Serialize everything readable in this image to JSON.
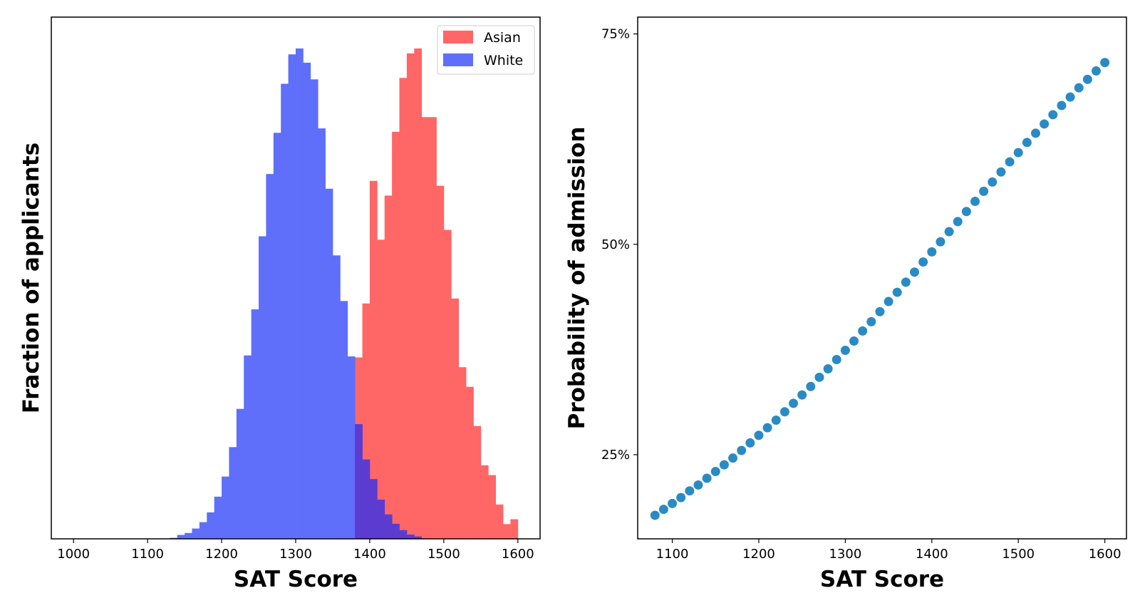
{
  "chart_data": [
    {
      "type": "bar",
      "subtype": "histogram",
      "xlabel": "SAT Score",
      "ylabel": "Fraction of applicants",
      "xlim": [
        970,
        1630
      ],
      "ylim": [
        0,
        1
      ],
      "y_ticks_shown": false,
      "xticks": [
        1000,
        1100,
        1200,
        1300,
        1400,
        1500,
        1600
      ],
      "grid": false,
      "legend": {
        "position": "top-right",
        "entries": [
          "Asian",
          "White"
        ]
      },
      "bin_width": 10,
      "overlap_color": "#5c3cd0",
      "series": [
        {
          "name": "Asian",
          "color": "#ff6666",
          "bin_starts": [
            1380,
            1390,
            1400,
            1410,
            1420,
            1430,
            1440,
            1450,
            1460,
            1470,
            1480,
            1490,
            1500,
            1510,
            1520,
            1530,
            1540,
            1550,
            1560,
            1570,
            1580,
            1590
          ],
          "values": [
            0.37,
            0.48,
            0.73,
            0.61,
            0.7,
            0.83,
            0.94,
            0.99,
            1.0,
            0.86,
            0.86,
            0.72,
            0.63,
            0.49,
            0.35,
            0.31,
            0.23,
            0.15,
            0.13,
            0.07,
            0.03,
            0.04
          ]
        },
        {
          "name": "White",
          "color": "#5f6ffa",
          "bin_starts": [
            1130,
            1140,
            1150,
            1160,
            1170,
            1180,
            1190,
            1200,
            1210,
            1220,
            1230,
            1240,
            1250,
            1260,
            1270,
            1280,
            1290,
            1300,
            1310,
            1320,
            1330,
            1340,
            1350,
            1360,
            1370,
            1380,
            1390,
            1400,
            1410,
            1420,
            1430,
            1440,
            1450,
            1460
          ],
          "values": [
            0.002,
            0.008,
            0.012,
            0.021,
            0.034,
            0.054,
            0.086,
            0.127,
            0.187,
            0.265,
            0.374,
            0.468,
            0.617,
            0.744,
            0.828,
            0.928,
            0.988,
            1.0,
            0.971,
            0.937,
            0.837,
            0.714,
            0.578,
            0.485,
            0.372,
            0.234,
            0.162,
            0.122,
            0.08,
            0.05,
            0.031,
            0.018,
            0.009,
            0.005
          ]
        }
      ]
    },
    {
      "type": "scatter",
      "xlabel": "SAT Score",
      "ylabel": "Probability of admission",
      "xlim": [
        1060,
        1625
      ],
      "ylim": [
        0.15,
        0.77
      ],
      "xticks": [
        1100,
        1200,
        1300,
        1400,
        1500,
        1600
      ],
      "yticks": [
        0.25,
        0.5,
        0.75
      ],
      "ytick_labels": [
        "25%",
        "50%",
        "75%"
      ],
      "grid": false,
      "color": "#2a8bc4",
      "x": [
        1080,
        1090,
        1100,
        1110,
        1120,
        1130,
        1140,
        1150,
        1160,
        1170,
        1180,
        1190,
        1200,
        1210,
        1220,
        1230,
        1240,
        1250,
        1260,
        1270,
        1280,
        1290,
        1300,
        1310,
        1320,
        1330,
        1340,
        1350,
        1360,
        1370,
        1380,
        1390,
        1400,
        1410,
        1420,
        1430,
        1440,
        1450,
        1460,
        1470,
        1480,
        1490,
        1500,
        1510,
        1520,
        1530,
        1540,
        1550,
        1560,
        1570,
        1580,
        1590,
        1600
      ],
      "y": [
        0.178,
        0.185,
        0.192,
        0.199,
        0.207,
        0.214,
        0.222,
        0.23,
        0.238,
        0.246,
        0.255,
        0.264,
        0.273,
        0.282,
        0.291,
        0.301,
        0.311,
        0.321,
        0.331,
        0.342,
        0.352,
        0.363,
        0.374,
        0.385,
        0.397,
        0.408,
        0.42,
        0.432,
        0.443,
        0.455,
        0.467,
        0.479,
        0.491,
        0.503,
        0.515,
        0.527,
        0.539,
        0.551,
        0.563,
        0.574,
        0.586,
        0.598,
        0.609,
        0.621,
        0.632,
        0.643,
        0.654,
        0.665,
        0.675,
        0.686,
        0.696,
        0.706,
        0.716
      ]
    }
  ]
}
